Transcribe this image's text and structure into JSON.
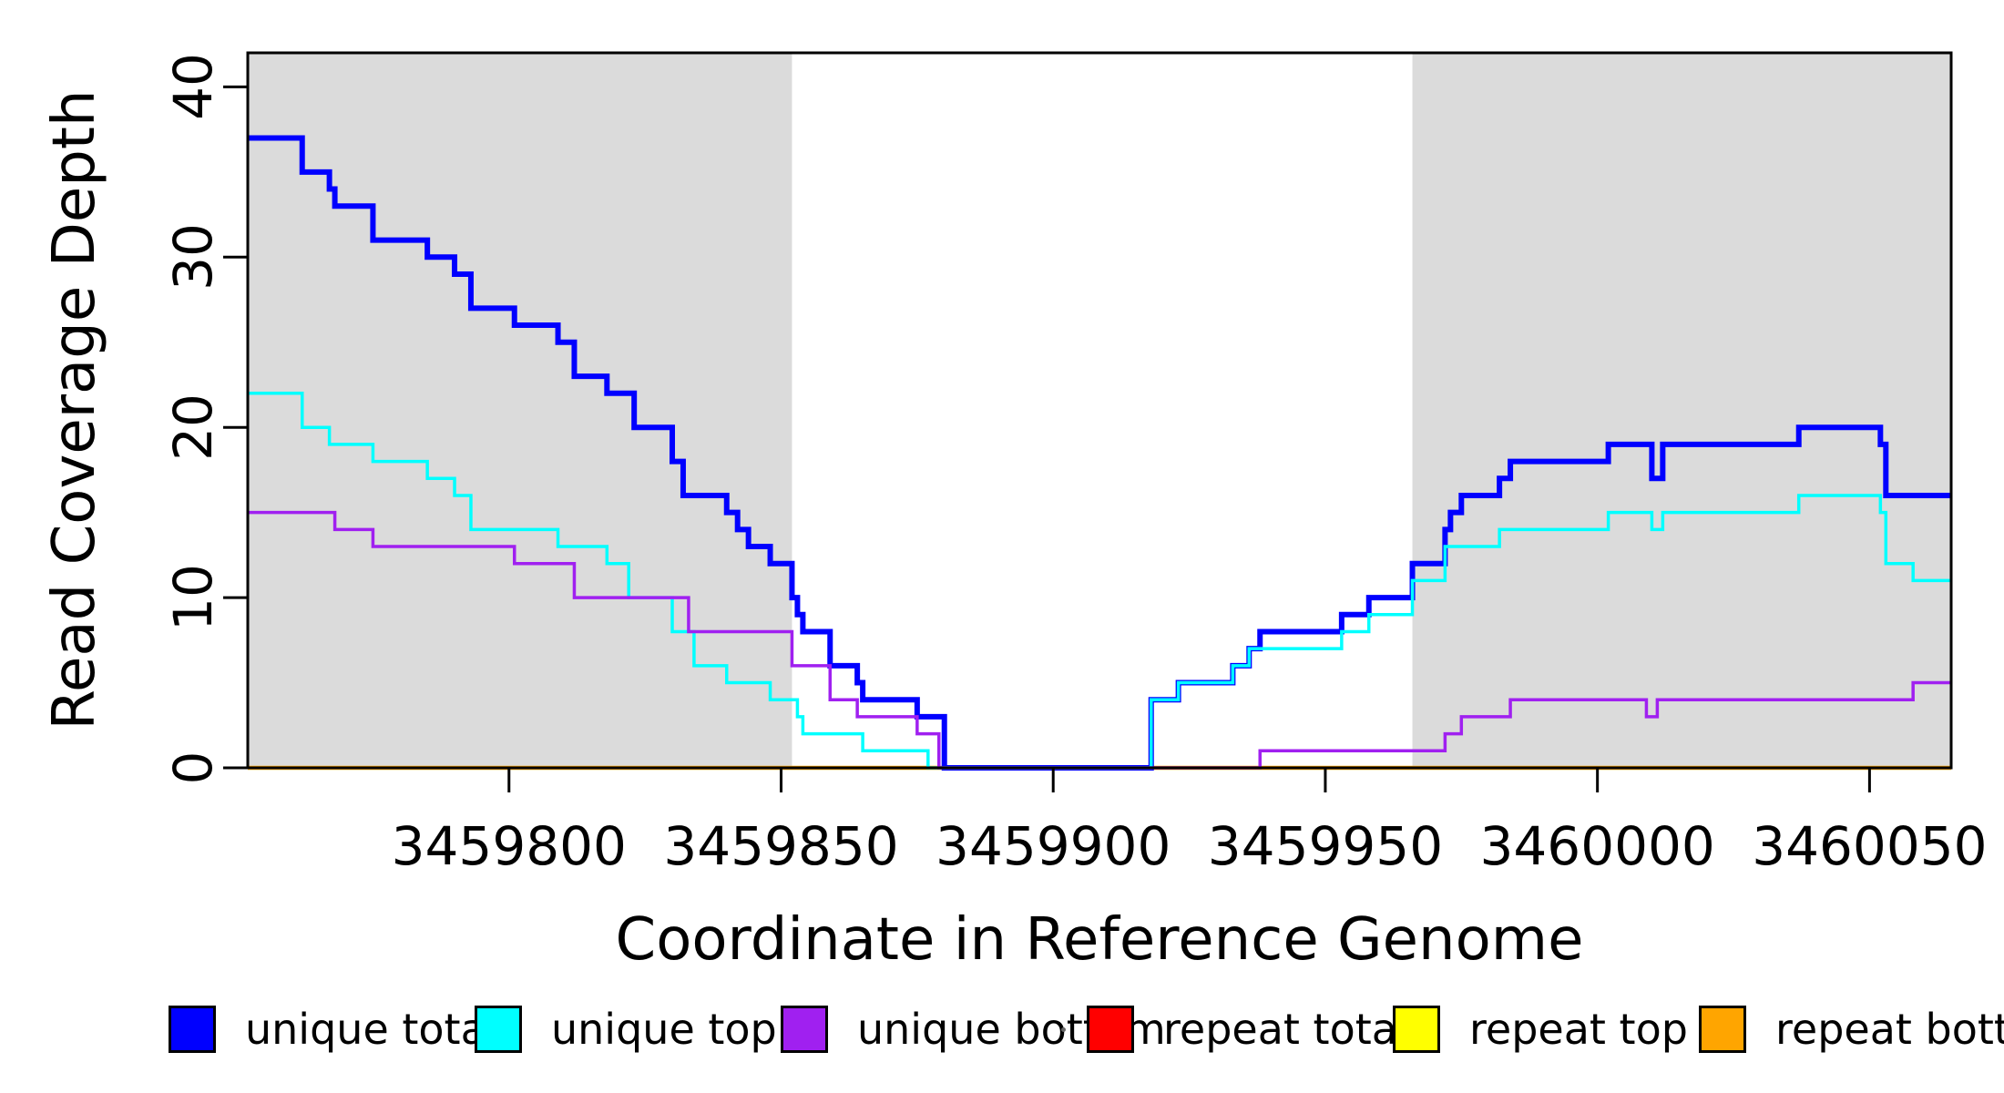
{
  "figure": {
    "x_axis_title": "Coordinate in Reference Genome",
    "y_axis_title": "Read Coverage Depth"
  },
  "axes": {
    "x": {
      "ticks": [
        {
          "value": 3459800,
          "label": "3459800"
        },
        {
          "value": 3459850,
          "label": "3459850"
        },
        {
          "value": 3459900,
          "label": "3459900"
        },
        {
          "value": 3459950,
          "label": "3459950"
        },
        {
          "value": 3460000,
          "label": "3460000"
        },
        {
          "value": 3460050,
          "label": "3460050"
        }
      ]
    },
    "y": {
      "ticks": [
        {
          "value": 0,
          "label": "0"
        },
        {
          "value": 10,
          "label": "10"
        },
        {
          "value": 20,
          "label": "20"
        },
        {
          "value": 30,
          "label": "30"
        },
        {
          "value": 40,
          "label": "40"
        }
      ]
    }
  },
  "legend": {
    "items": [
      {
        "label": "unique total",
        "color": "#0000FF"
      },
      {
        "label": "unique top",
        "color": "#00FFFF"
      },
      {
        "label": "unique bottom",
        "color": "#A020F0"
      },
      {
        "label": "repeat total",
        "color": "#FF0000"
      },
      {
        "label": "repeat top",
        "color": "#FFFF00"
      },
      {
        "label": "repeat bottom",
        "color": "#FFA500"
      }
    ]
  },
  "chart_data": {
    "type": "line",
    "subtype": "step",
    "title": "",
    "xlabel": "Coordinate in Reference Genome",
    "ylabel": "Read Coverage Depth",
    "x_range": [
      3459752,
      3460065
    ],
    "y_range": [
      0,
      42
    ],
    "grid": false,
    "legend_position": "bottom",
    "shaded_region_color": "#DBDBDB",
    "shaded_regions": [
      {
        "name": "repeat-region-left",
        "x0": 3459752,
        "x1": 3459852
      },
      {
        "name": "repeat-region-right",
        "x0": 3459966,
        "x1": 3460065
      }
    ],
    "series": [
      {
        "name": "repeat top",
        "color": "#FFFF00",
        "width": 3,
        "points": [
          [
            3459752,
            0
          ]
        ]
      },
      {
        "name": "repeat total",
        "color": "#FF0000",
        "width": 3,
        "points": [
          [
            3459752,
            0
          ]
        ]
      },
      {
        "name": "repeat bottom",
        "color": "#FFA500",
        "width": 4.5,
        "points": [
          [
            3459752,
            0
          ]
        ]
      },
      {
        "name": "unique total",
        "color": "#0000FF",
        "width": 6,
        "points": [
          [
            3459752,
            37
          ],
          [
            3459762,
            35
          ],
          [
            3459767,
            34
          ],
          [
            3459768,
            33
          ],
          [
            3459775,
            31
          ],
          [
            3459785,
            30
          ],
          [
            3459790,
            29
          ],
          [
            3459793,
            27
          ],
          [
            3459801,
            26
          ],
          [
            3459809,
            25
          ],
          [
            3459812,
            23
          ],
          [
            3459818,
            22
          ],
          [
            3459823,
            20
          ],
          [
            3459830,
            18
          ],
          [
            3459832,
            16
          ],
          [
            3459840,
            15
          ],
          [
            3459842,
            14
          ],
          [
            3459844,
            13
          ],
          [
            3459848,
            12
          ],
          [
            3459852,
            10
          ],
          [
            3459853,
            9
          ],
          [
            3459854,
            8
          ],
          [
            3459859,
            6
          ],
          [
            3459864,
            5
          ],
          [
            3459865,
            4
          ],
          [
            3459875,
            3
          ],
          [
            3459880,
            0
          ],
          [
            3459918,
            4
          ],
          [
            3459923,
            5
          ],
          [
            3459933,
            6
          ],
          [
            3459936,
            7
          ],
          [
            3459938,
            8
          ],
          [
            3459953,
            9
          ],
          [
            3459958,
            10
          ],
          [
            3459966,
            12
          ],
          [
            3459972,
            14
          ],
          [
            3459973,
            15
          ],
          [
            3459975,
            16
          ],
          [
            3459982,
            17
          ],
          [
            3459984,
            18
          ],
          [
            3460002,
            19
          ],
          [
            3460010,
            17
          ],
          [
            3460012,
            19
          ],
          [
            3460037,
            20
          ],
          [
            3460052,
            19
          ],
          [
            3460053,
            16
          ]
        ]
      },
      {
        "name": "unique top",
        "color": "#00FFFF",
        "width": 3.5,
        "points": [
          [
            3459752,
            22
          ],
          [
            3459762,
            20
          ],
          [
            3459767,
            19
          ],
          [
            3459775,
            18
          ],
          [
            3459785,
            17
          ],
          [
            3459790,
            16
          ],
          [
            3459793,
            14
          ],
          [
            3459809,
            13
          ],
          [
            3459818,
            12
          ],
          [
            3459822,
            10
          ],
          [
            3459830,
            8
          ],
          [
            3459834,
            6
          ],
          [
            3459840,
            5
          ],
          [
            3459848,
            4
          ],
          [
            3459853,
            3
          ],
          [
            3459854,
            2
          ],
          [
            3459865,
            1
          ],
          [
            3459877,
            0
          ],
          [
            3459918,
            4
          ],
          [
            3459923,
            5
          ],
          [
            3459933,
            6
          ],
          [
            3459936,
            7
          ],
          [
            3459953,
            8
          ],
          [
            3459958,
            9
          ],
          [
            3459966,
            11
          ],
          [
            3459972,
            13
          ],
          [
            3459982,
            14
          ],
          [
            3460002,
            15
          ],
          [
            3460010,
            14
          ],
          [
            3460012,
            15
          ],
          [
            3460037,
            16
          ],
          [
            3460052,
            15
          ],
          [
            3460053,
            12
          ],
          [
            3460058,
            11
          ]
        ]
      },
      {
        "name": "unique bottom",
        "color": "#A020F0",
        "width": 3.5,
        "points": [
          [
            3459752,
            15
          ],
          [
            3459768,
            14
          ],
          [
            3459775,
            13
          ],
          [
            3459801,
            12
          ],
          [
            3459812,
            10
          ],
          [
            3459833,
            8
          ],
          [
            3459852,
            6
          ],
          [
            3459859,
            4
          ],
          [
            3459864,
            3
          ],
          [
            3459875,
            2
          ],
          [
            3459879,
            0
          ],
          [
            3459938,
            1
          ],
          [
            3459972,
            2
          ],
          [
            3459975,
            3
          ],
          [
            3459984,
            4
          ],
          [
            3460009,
            3
          ],
          [
            3460011,
            4
          ],
          [
            3460058,
            5
          ]
        ]
      }
    ],
    "baseline_overdraw": [
      {
        "name": "repeat-total-visible-segment",
        "color": "#FF2020",
        "width": 3,
        "x0": 3459918,
        "x1": 3459938,
        "y": 0
      }
    ]
  }
}
